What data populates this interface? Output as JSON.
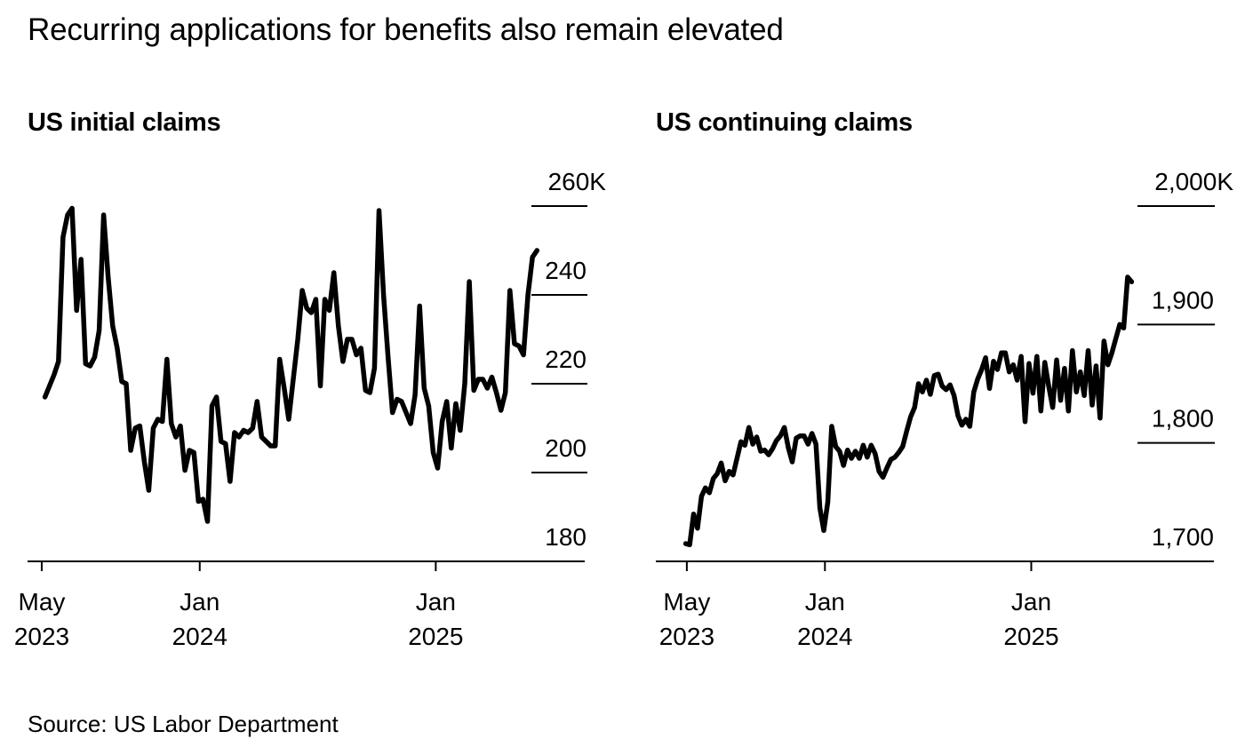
{
  "title": "Recurring applications for benefits also remain elevated",
  "source": "Source: US Labor Department",
  "chart_data": [
    {
      "type": "line",
      "title": "US initial claims",
      "y_unit": "thousands",
      "ylim": [
        180,
        260
      ],
      "y_ticks": [
        {
          "value": 260,
          "label": "260K"
        },
        {
          "value": 240,
          "label": "240"
        },
        {
          "value": 220,
          "label": "220"
        },
        {
          "value": 200,
          "label": "200"
        },
        {
          "value": 180,
          "label": "180"
        }
      ],
      "x_ticks": [
        {
          "date": "2023-05-01",
          "line1": "May",
          "line2": "2023"
        },
        {
          "date": "2024-01-01",
          "line1": "Jan",
          "line2": "2024"
        },
        {
          "date": "2025-01-01",
          "line1": "Jan",
          "line2": "2025"
        }
      ],
      "x_range": [
        "2023-04-09",
        "2025-08-20"
      ],
      "series": [
        {
          "color": "#000000",
          "points": [
            [
              "2023-05-06",
              217.0
            ],
            [
              "2023-05-13",
              219.5
            ],
            [
              "2023-05-20",
              222.0
            ],
            [
              "2023-05-27",
              225.0
            ],
            [
              "2023-06-03",
              253.0
            ],
            [
              "2023-06-10",
              258.0
            ],
            [
              "2023-06-17",
              259.5
            ],
            [
              "2023-06-24",
              236.5
            ],
            [
              "2023-07-01",
              248.0
            ],
            [
              "2023-07-08",
              224.5
            ],
            [
              "2023-07-15",
              224.0
            ],
            [
              "2023-07-22",
              226.0
            ],
            [
              "2023-07-29",
              232.0
            ],
            [
              "2023-08-05",
              258.0
            ],
            [
              "2023-08-12",
              244.0
            ],
            [
              "2023-08-19",
              233.0
            ],
            [
              "2023-08-26",
              228.0
            ],
            [
              "2023-09-02",
              220.5
            ],
            [
              "2023-09-09",
              220.0
            ],
            [
              "2023-09-16",
              205.0
            ],
            [
              "2023-09-23",
              210.0
            ],
            [
              "2023-09-30",
              210.5
            ],
            [
              "2023-10-07",
              202.5
            ],
            [
              "2023-10-14",
              196.0
            ],
            [
              "2023-10-21",
              210.0
            ],
            [
              "2023-10-28",
              212.0
            ],
            [
              "2023-11-04",
              211.5
            ],
            [
              "2023-11-11",
              225.5
            ],
            [
              "2023-11-18",
              211.0
            ],
            [
              "2023-11-25",
              208.0
            ],
            [
              "2023-12-02",
              210.5
            ],
            [
              "2023-12-09",
              200.5
            ],
            [
              "2023-12-16",
              205.0
            ],
            [
              "2023-12-23",
              204.5
            ],
            [
              "2023-12-30",
              193.5
            ],
            [
              "2024-01-06",
              194.0
            ],
            [
              "2024-01-13",
              189.0
            ],
            [
              "2024-01-20",
              215.0
            ],
            [
              "2024-01-27",
              217.0
            ],
            [
              "2024-02-03",
              207.0
            ],
            [
              "2024-02-10",
              206.5
            ],
            [
              "2024-02-17",
              198.0
            ],
            [
              "2024-02-24",
              209.0
            ],
            [
              "2024-03-02",
              208.0
            ],
            [
              "2024-03-09",
              209.5
            ],
            [
              "2024-03-16",
              209.0
            ],
            [
              "2024-03-23",
              210.0
            ],
            [
              "2024-03-30",
              216.0
            ],
            [
              "2024-04-06",
              208.0
            ],
            [
              "2024-04-13",
              207.0
            ],
            [
              "2024-04-20",
              206.0
            ],
            [
              "2024-04-27",
              206.0
            ],
            [
              "2024-05-04",
              225.5
            ],
            [
              "2024-05-11",
              219.0
            ],
            [
              "2024-05-18",
              212.0
            ],
            [
              "2024-05-25",
              221.0
            ],
            [
              "2024-06-01",
              230.0
            ],
            [
              "2024-06-08",
              241.0
            ],
            [
              "2024-06-15",
              237.0
            ],
            [
              "2024-06-22",
              236.0
            ],
            [
              "2024-06-29",
              239.0
            ],
            [
              "2024-07-06",
              219.5
            ],
            [
              "2024-07-13",
              239.0
            ],
            [
              "2024-07-20",
              236.5
            ],
            [
              "2024-07-27",
              245.0
            ],
            [
              "2024-08-03",
              233.0
            ],
            [
              "2024-08-10",
              225.0
            ],
            [
              "2024-08-17",
              230.0
            ],
            [
              "2024-08-24",
              230.0
            ],
            [
              "2024-08-31",
              226.5
            ],
            [
              "2024-09-07",
              228.0
            ],
            [
              "2024-09-14",
              218.5
            ],
            [
              "2024-09-21",
              218.0
            ],
            [
              "2024-09-28",
              223.5
            ],
            [
              "2024-10-05",
              259.0
            ],
            [
              "2024-10-12",
              240.0
            ],
            [
              "2024-10-19",
              226.0
            ],
            [
              "2024-10-26",
              213.5
            ],
            [
              "2024-11-02",
              216.5
            ],
            [
              "2024-11-09",
              216.0
            ],
            [
              "2024-11-16",
              213.5
            ],
            [
              "2024-11-23",
              211.0
            ],
            [
              "2024-11-30",
              217.5
            ],
            [
              "2024-12-07",
              237.5
            ],
            [
              "2024-12-14",
              219.0
            ],
            [
              "2024-12-21",
              215.0
            ],
            [
              "2024-12-28",
              204.5
            ],
            [
              "2025-01-04",
              201.0
            ],
            [
              "2025-01-11",
              211.5
            ],
            [
              "2025-01-18",
              216.0
            ],
            [
              "2025-01-25",
              205.5
            ],
            [
              "2025-02-01",
              215.5
            ],
            [
              "2025-02-08",
              209.5
            ],
            [
              "2025-02-15",
              220.0
            ],
            [
              "2025-02-22",
              243.0
            ],
            [
              "2025-03-01",
              218.5
            ],
            [
              "2025-03-08",
              221.0
            ],
            [
              "2025-03-15",
              221.0
            ],
            [
              "2025-03-22",
              219.0
            ],
            [
              "2025-03-29",
              221.5
            ],
            [
              "2025-04-05",
              218.0
            ],
            [
              "2025-04-12",
              214.0
            ],
            [
              "2025-04-19",
              218.0
            ],
            [
              "2025-04-26",
              241.0
            ],
            [
              "2025-05-03",
              229.0
            ],
            [
              "2025-05-10",
              228.5
            ],
            [
              "2025-05-17",
              226.5
            ],
            [
              "2025-05-24",
              240.0
            ],
            [
              "2025-05-31",
              248.5
            ],
            [
              "2025-06-07",
              250.0
            ]
          ]
        }
      ]
    },
    {
      "type": "line",
      "title": "US continuing claims",
      "y_unit": "thousands",
      "ylim": [
        1700,
        2000
      ],
      "y_ticks": [
        {
          "value": 2000,
          "label": "2,000K"
        },
        {
          "value": 1900,
          "label": "1,900"
        },
        {
          "value": 1800,
          "label": "1,800"
        },
        {
          "value": 1700,
          "label": "1,700"
        }
      ],
      "x_ticks": [
        {
          "date": "2023-05-01",
          "line1": "May",
          "line2": "2023"
        },
        {
          "date": "2024-01-01",
          "line1": "Jan",
          "line2": "2024"
        },
        {
          "date": "2025-01-01",
          "line1": "Jan",
          "line2": "2025"
        }
      ],
      "x_range": [
        "2023-03-07",
        "2025-11-21"
      ],
      "series": [
        {
          "color": "#000000",
          "points": [
            [
              "2023-04-29",
              1715
            ],
            [
              "2023-05-06",
              1714
            ],
            [
              "2023-05-13",
              1740
            ],
            [
              "2023-05-20",
              1728
            ],
            [
              "2023-05-27",
              1755
            ],
            [
              "2023-06-03",
              1762
            ],
            [
              "2023-06-10",
              1758
            ],
            [
              "2023-06-17",
              1770
            ],
            [
              "2023-06-24",
              1774
            ],
            [
              "2023-07-01",
              1783
            ],
            [
              "2023-07-08",
              1768
            ],
            [
              "2023-07-15",
              1776
            ],
            [
              "2023-07-22",
              1773
            ],
            [
              "2023-08-05",
              1801
            ],
            [
              "2023-08-12",
              1798
            ],
            [
              "2023-08-19",
              1813
            ],
            [
              "2023-08-26",
              1799
            ],
            [
              "2023-09-02",
              1805
            ],
            [
              "2023-09-09",
              1793
            ],
            [
              "2023-09-16",
              1794
            ],
            [
              "2023-09-23",
              1790
            ],
            [
              "2023-09-30",
              1795
            ],
            [
              "2023-10-07",
              1802
            ],
            [
              "2023-10-14",
              1806
            ],
            [
              "2023-10-21",
              1813
            ],
            [
              "2023-10-28",
              1796
            ],
            [
              "2023-11-04",
              1784
            ],
            [
              "2023-11-11",
              1804
            ],
            [
              "2023-11-18",
              1806
            ],
            [
              "2023-11-25",
              1806
            ],
            [
              "2023-12-02",
              1799
            ],
            [
              "2023-12-09",
              1808
            ],
            [
              "2023-12-16",
              1799
            ],
            [
              "2023-12-23",
              1745
            ],
            [
              "2023-12-30",
              1726
            ],
            [
              "2024-01-06",
              1750
            ],
            [
              "2024-01-13",
              1814
            ],
            [
              "2024-01-20",
              1797
            ],
            [
              "2024-01-27",
              1793
            ],
            [
              "2024-02-03",
              1781
            ],
            [
              "2024-02-10",
              1794
            ],
            [
              "2024-02-17",
              1787
            ],
            [
              "2024-02-24",
              1793
            ],
            [
              "2024-03-02",
              1787
            ],
            [
              "2024-03-09",
              1798
            ],
            [
              "2024-03-16",
              1788
            ],
            [
              "2024-03-23",
              1798
            ],
            [
              "2024-03-30",
              1791
            ],
            [
              "2024-04-06",
              1776
            ],
            [
              "2024-04-13",
              1771
            ],
            [
              "2024-04-20",
              1779
            ],
            [
              "2024-04-27",
              1786
            ],
            [
              "2024-05-04",
              1788
            ],
            [
              "2024-05-11",
              1792
            ],
            [
              "2024-05-18",
              1797
            ],
            [
              "2024-05-25",
              1810
            ],
            [
              "2024-06-01",
              1822
            ],
            [
              "2024-06-08",
              1830
            ],
            [
              "2024-06-15",
              1850
            ],
            [
              "2024-06-22",
              1843
            ],
            [
              "2024-06-29",
              1853
            ],
            [
              "2024-07-06",
              1841
            ],
            [
              "2024-07-13",
              1857
            ],
            [
              "2024-07-20",
              1858
            ],
            [
              "2024-07-27",
              1848
            ],
            [
              "2024-08-03",
              1845
            ],
            [
              "2024-08-10",
              1849
            ],
            [
              "2024-08-17",
              1840
            ],
            [
              "2024-08-24",
              1823
            ],
            [
              "2024-08-31",
              1815
            ],
            [
              "2024-09-07",
              1820
            ],
            [
              "2024-09-14",
              1814
            ],
            [
              "2024-09-21",
              1843
            ],
            [
              "2024-09-28",
              1854
            ],
            [
              "2024-10-05",
              1862
            ],
            [
              "2024-10-12",
              1872
            ],
            [
              "2024-10-19",
              1846
            ],
            [
              "2024-10-26",
              1869
            ],
            [
              "2024-11-02",
              1862
            ],
            [
              "2024-11-09",
              1876
            ],
            [
              "2024-11-16",
              1876
            ],
            [
              "2024-11-23",
              1860
            ],
            [
              "2024-11-30",
              1866
            ],
            [
              "2024-12-07",
              1853
            ],
            [
              "2024-12-14",
              1873
            ],
            [
              "2024-12-21",
              1818
            ],
            [
              "2024-12-28",
              1867
            ],
            [
              "2025-01-04",
              1842
            ],
            [
              "2025-01-11",
              1873
            ],
            [
              "2025-01-18",
              1827
            ],
            [
              "2025-01-25",
              1868
            ],
            [
              "2025-02-01",
              1848
            ],
            [
              "2025-02-08",
              1830
            ],
            [
              "2025-02-15",
              1870
            ],
            [
              "2025-02-22",
              1836
            ],
            [
              "2025-03-01",
              1863
            ],
            [
              "2025-03-08",
              1827
            ],
            [
              "2025-03-15",
              1878
            ],
            [
              "2025-03-22",
              1843
            ],
            [
              "2025-03-29",
              1860
            ],
            [
              "2025-04-05",
              1840
            ],
            [
              "2025-04-12",
              1878
            ],
            [
              "2025-04-19",
              1832
            ],
            [
              "2025-04-26",
              1865
            ],
            [
              "2025-05-03",
              1821
            ],
            [
              "2025-05-10",
              1886
            ],
            [
              "2025-05-17",
              1866
            ],
            [
              "2025-05-24",
              1876
            ],
            [
              "2025-05-31",
              1888
            ],
            [
              "2025-06-07",
              1900
            ],
            [
              "2025-06-14",
              1897
            ],
            [
              "2025-06-21",
              1940
            ],
            [
              "2025-06-28",
              1936
            ]
          ]
        }
      ]
    }
  ]
}
